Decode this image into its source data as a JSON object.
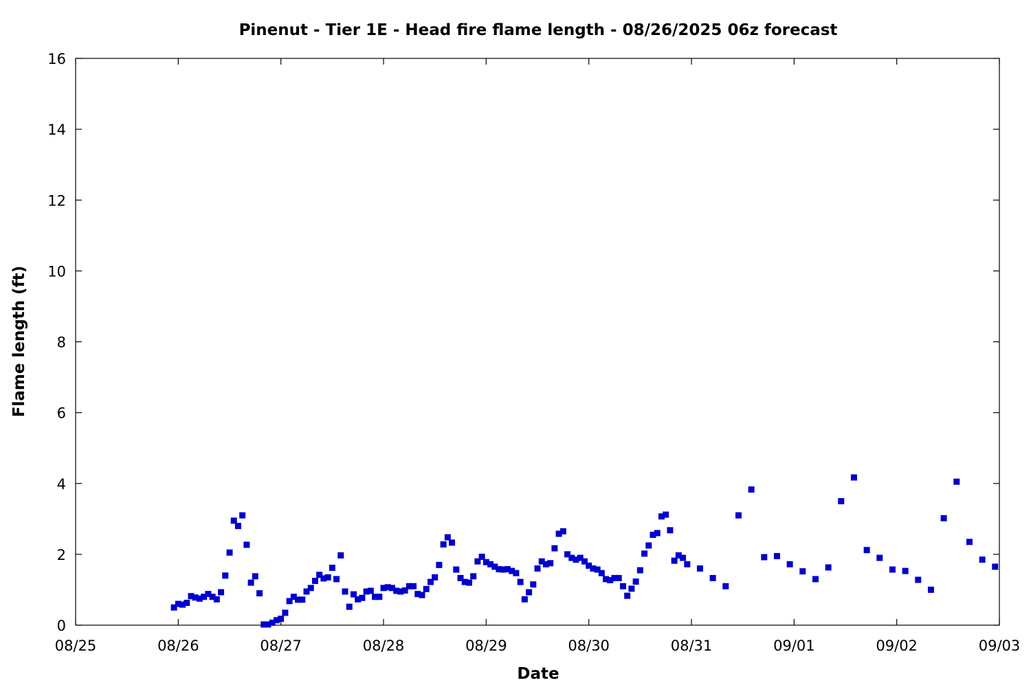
{
  "chart_data": {
    "type": "scatter",
    "title": "Pinenut - Tier 1E - Head fire flame length - 08/26/2025 06z forecast",
    "xlabel": "Date",
    "ylabel": "Flame length (ft)",
    "xlim": [
      "2025-08-25T00:00",
      "2025-09-03T00:00"
    ],
    "ylim": [
      0,
      16
    ],
    "x_ticks": [
      "08/25",
      "08/26",
      "08/27",
      "08/28",
      "08/29",
      "08/30",
      "08/31",
      "09/01",
      "09/02",
      "09/03"
    ],
    "y_ticks": [
      "0",
      "2",
      "4",
      "6",
      "8",
      "10",
      "12",
      "14",
      "16"
    ],
    "grid": false,
    "legend": "none",
    "marker_color": "#0000cc",
    "series": [
      {
        "points": [
          [
            "2025-08-25T23:00",
            0.5
          ],
          [
            "2025-08-26T00:00",
            0.6
          ],
          [
            "2025-08-26T01:00",
            0.58
          ],
          [
            "2025-08-26T02:00",
            0.63
          ],
          [
            "2025-08-26T03:00",
            0.82
          ],
          [
            "2025-08-26T04:00",
            0.78
          ],
          [
            "2025-08-26T05:00",
            0.75
          ],
          [
            "2025-08-26T06:00",
            0.8
          ],
          [
            "2025-08-26T07:00",
            0.88
          ],
          [
            "2025-08-26T08:00",
            0.8
          ],
          [
            "2025-08-26T09:00",
            0.73
          ],
          [
            "2025-08-26T10:00",
            0.93
          ],
          [
            "2025-08-26T11:00",
            1.4
          ],
          [
            "2025-08-26T12:00",
            2.05
          ],
          [
            "2025-08-26T13:00",
            2.95
          ],
          [
            "2025-08-26T14:00",
            2.8
          ],
          [
            "2025-08-26T15:00",
            3.1
          ],
          [
            "2025-08-26T16:00",
            2.27
          ],
          [
            "2025-08-26T17:00",
            1.2
          ],
          [
            "2025-08-26T18:00",
            1.38
          ],
          [
            "2025-08-26T19:00",
            0.9
          ],
          [
            "2025-08-26T20:00",
            0.02
          ],
          [
            "2025-08-26T21:00",
            0.02
          ],
          [
            "2025-08-26T22:00",
            0.07
          ],
          [
            "2025-08-26T23:00",
            0.14
          ],
          [
            "2025-08-27T00:00",
            0.18
          ],
          [
            "2025-08-27T01:00",
            0.35
          ],
          [
            "2025-08-27T02:00",
            0.68
          ],
          [
            "2025-08-27T03:00",
            0.8
          ],
          [
            "2025-08-27T04:00",
            0.72
          ],
          [
            "2025-08-27T05:00",
            0.72
          ],
          [
            "2025-08-27T06:00",
            0.95
          ],
          [
            "2025-08-27T07:00",
            1.05
          ],
          [
            "2025-08-27T08:00",
            1.25
          ],
          [
            "2025-08-27T09:00",
            1.42
          ],
          [
            "2025-08-27T10:00",
            1.32
          ],
          [
            "2025-08-27T11:00",
            1.35
          ],
          [
            "2025-08-27T12:00",
            1.62
          ],
          [
            "2025-08-27T13:00",
            1.3
          ],
          [
            "2025-08-27T14:00",
            1.97
          ],
          [
            "2025-08-27T15:00",
            0.95
          ],
          [
            "2025-08-27T16:00",
            0.52
          ],
          [
            "2025-08-27T17:00",
            0.87
          ],
          [
            "2025-08-27T18:00",
            0.73
          ],
          [
            "2025-08-27T19:00",
            0.77
          ],
          [
            "2025-08-27T20:00",
            0.95
          ],
          [
            "2025-08-27T21:00",
            0.97
          ],
          [
            "2025-08-27T22:00",
            0.8
          ],
          [
            "2025-08-27T23:00",
            0.8
          ],
          [
            "2025-08-28T00:00",
            1.05
          ],
          [
            "2025-08-28T01:00",
            1.07
          ],
          [
            "2025-08-28T02:00",
            1.05
          ],
          [
            "2025-08-28T03:00",
            0.97
          ],
          [
            "2025-08-28T04:00",
            0.95
          ],
          [
            "2025-08-28T05:00",
            0.98
          ],
          [
            "2025-08-28T06:00",
            1.1
          ],
          [
            "2025-08-28T07:00",
            1.1
          ],
          [
            "2025-08-28T08:00",
            0.88
          ],
          [
            "2025-08-28T09:00",
            0.85
          ],
          [
            "2025-08-28T10:00",
            1.02
          ],
          [
            "2025-08-28T11:00",
            1.22
          ],
          [
            "2025-08-28T12:00",
            1.35
          ],
          [
            "2025-08-28T13:00",
            1.7
          ],
          [
            "2025-08-28T14:00",
            2.28
          ],
          [
            "2025-08-28T15:00",
            2.48
          ],
          [
            "2025-08-28T16:00",
            2.33
          ],
          [
            "2025-08-28T17:00",
            1.57
          ],
          [
            "2025-08-28T18:00",
            1.33
          ],
          [
            "2025-08-28T19:00",
            1.22
          ],
          [
            "2025-08-28T20:00",
            1.2
          ],
          [
            "2025-08-28T21:00",
            1.38
          ],
          [
            "2025-08-28T22:00",
            1.8
          ],
          [
            "2025-08-28T23:00",
            1.93
          ],
          [
            "2025-08-29T00:00",
            1.78
          ],
          [
            "2025-08-29T01:00",
            1.72
          ],
          [
            "2025-08-29T02:00",
            1.65
          ],
          [
            "2025-08-29T03:00",
            1.58
          ],
          [
            "2025-08-29T04:00",
            1.57
          ],
          [
            "2025-08-29T05:00",
            1.58
          ],
          [
            "2025-08-29T06:00",
            1.53
          ],
          [
            "2025-08-29T07:00",
            1.47
          ],
          [
            "2025-08-29T08:00",
            1.22
          ],
          [
            "2025-08-29T09:00",
            0.73
          ],
          [
            "2025-08-29T10:00",
            0.93
          ],
          [
            "2025-08-29T11:00",
            1.15
          ],
          [
            "2025-08-29T12:00",
            1.6
          ],
          [
            "2025-08-29T13:00",
            1.8
          ],
          [
            "2025-08-29T14:00",
            1.72
          ],
          [
            "2025-08-29T15:00",
            1.75
          ],
          [
            "2025-08-29T16:00",
            2.17
          ],
          [
            "2025-08-29T17:00",
            2.58
          ],
          [
            "2025-08-29T18:00",
            2.65
          ],
          [
            "2025-08-29T19:00",
            2.0
          ],
          [
            "2025-08-29T20:00",
            1.9
          ],
          [
            "2025-08-29T21:00",
            1.85
          ],
          [
            "2025-08-29T22:00",
            1.9
          ],
          [
            "2025-08-29T23:00",
            1.8
          ],
          [
            "2025-08-30T00:00",
            1.68
          ],
          [
            "2025-08-30T01:00",
            1.6
          ],
          [
            "2025-08-30T02:00",
            1.57
          ],
          [
            "2025-08-30T03:00",
            1.47
          ],
          [
            "2025-08-30T04:00",
            1.3
          ],
          [
            "2025-08-30T05:00",
            1.27
          ],
          [
            "2025-08-30T06:00",
            1.33
          ],
          [
            "2025-08-30T07:00",
            1.33
          ],
          [
            "2025-08-30T08:00",
            1.1
          ],
          [
            "2025-08-30T09:00",
            0.83
          ],
          [
            "2025-08-30T10:00",
            1.03
          ],
          [
            "2025-08-30T11:00",
            1.23
          ],
          [
            "2025-08-30T12:00",
            1.55
          ],
          [
            "2025-08-30T13:00",
            2.02
          ],
          [
            "2025-08-30T14:00",
            2.25
          ],
          [
            "2025-08-30T15:00",
            2.55
          ],
          [
            "2025-08-30T16:00",
            2.6
          ],
          [
            "2025-08-30T17:00",
            3.07
          ],
          [
            "2025-08-30T18:00",
            3.12
          ],
          [
            "2025-08-30T19:00",
            2.68
          ],
          [
            "2025-08-30T20:00",
            1.82
          ],
          [
            "2025-08-30T21:00",
            1.97
          ],
          [
            "2025-08-30T22:00",
            1.9
          ],
          [
            "2025-08-30T23:00",
            1.72
          ],
          [
            "2025-08-31T02:00",
            1.6
          ],
          [
            "2025-08-31T05:00",
            1.33
          ],
          [
            "2025-08-31T08:00",
            1.1
          ],
          [
            "2025-08-31T11:00",
            3.1
          ],
          [
            "2025-08-31T14:00",
            3.83
          ],
          [
            "2025-08-31T17:00",
            1.92
          ],
          [
            "2025-08-31T20:00",
            1.95
          ],
          [
            "2025-08-31T23:00",
            1.72
          ],
          [
            "2025-09-01T02:00",
            1.52
          ],
          [
            "2025-09-01T05:00",
            1.3
          ],
          [
            "2025-09-01T08:00",
            1.63
          ],
          [
            "2025-09-01T11:00",
            3.5
          ],
          [
            "2025-09-01T14:00",
            4.17
          ],
          [
            "2025-09-01T17:00",
            2.12
          ],
          [
            "2025-09-01T20:00",
            1.9
          ],
          [
            "2025-09-01T23:00",
            1.57
          ],
          [
            "2025-09-02T02:00",
            1.53
          ],
          [
            "2025-09-02T05:00",
            1.28
          ],
          [
            "2025-09-02T08:00",
            1.0
          ],
          [
            "2025-09-02T11:00",
            3.02
          ],
          [
            "2025-09-02T14:00",
            4.05
          ],
          [
            "2025-09-02T17:00",
            2.35
          ],
          [
            "2025-09-02T20:00",
            1.85
          ],
          [
            "2025-09-02T23:00",
            1.65
          ]
        ]
      }
    ]
  }
}
